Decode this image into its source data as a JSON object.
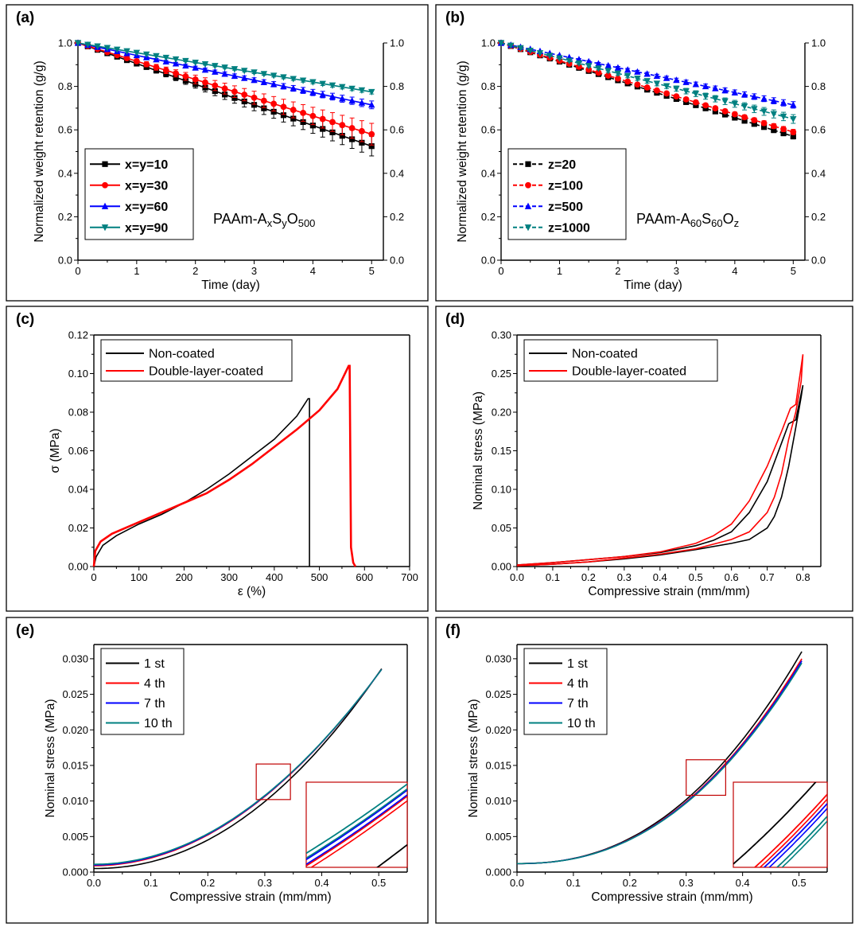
{
  "chart_data": [
    {
      "id": "a",
      "panel_label": "(a)",
      "type": "line",
      "xlabel": "Time (day)",
      "ylabel": "Normalized weight retention (g/g)",
      "xlim": [
        0,
        5.2
      ],
      "ylim": [
        0,
        1.0
      ],
      "xticks": [
        "0",
        "1",
        "2",
        "3",
        "4",
        "5"
      ],
      "yticks": [
        "0.0",
        "0.2",
        "0.4",
        "0.6",
        "0.8",
        "1.0"
      ],
      "right_axis": true,
      "annotation": {
        "prefix": "PAAm-A",
        "s1": "x",
        "mid": "S",
        "s2": "y",
        "mid2": "O",
        "s3": "500"
      },
      "legend_position": "bottom-left",
      "legend_bold": true,
      "error_bars": true,
      "series": [
        {
          "name": "x=y=10",
          "color": "#000000",
          "marker": "square",
          "dashed": false,
          "end": 0.525,
          "err": 0.045
        },
        {
          "name": "x=y=30",
          "color": "#ff0000",
          "marker": "circle",
          "dashed": false,
          "end": 0.58,
          "err": 0.05
        },
        {
          "name": "x=y=60",
          "color": "#0000ff",
          "marker": "triangle-up",
          "dashed": false,
          "end": 0.715,
          "err": 0.018
        },
        {
          "name": "x=y=90",
          "color": "#008080",
          "marker": "triangle-down",
          "dashed": false,
          "end": 0.775,
          "err": 0.01
        }
      ]
    },
    {
      "id": "b",
      "panel_label": "(b)",
      "type": "line",
      "xlabel": "Time (day)",
      "ylabel": "Normalized weight retention (g/g)",
      "xlim": [
        0,
        5.2
      ],
      "ylim": [
        0,
        1.0
      ],
      "xticks": [
        "0",
        "1",
        "2",
        "3",
        "4",
        "5"
      ],
      "yticks": [
        "0.0",
        "0.2",
        "0.4",
        "0.6",
        "0.8",
        "1.0"
      ],
      "right_axis": true,
      "annotation": {
        "prefix": "PAAm-A",
        "s1": "60",
        "mid": "S",
        "s2": "60",
        "mid2": "O",
        "s3": "z"
      },
      "legend_position": "bottom-left",
      "legend_bold": true,
      "error_bars": true,
      "series": [
        {
          "name": "z=20",
          "color": "#000000",
          "marker": "square",
          "dashed": true,
          "end": 0.57,
          "err": 0.012
        },
        {
          "name": "z=100",
          "color": "#ff0000",
          "marker": "circle",
          "dashed": true,
          "end": 0.59,
          "err": 0.012
        },
        {
          "name": "z=500",
          "color": "#0000ff",
          "marker": "triangle-up",
          "dashed": true,
          "end": 0.715,
          "err": 0.015
        },
        {
          "name": "z=1000",
          "color": "#008080",
          "marker": "triangle-down",
          "dashed": true,
          "end": 0.65,
          "err": 0.02
        }
      ]
    },
    {
      "id": "c",
      "panel_label": "(c)",
      "type": "line",
      "xlabel": "ε (%)",
      "ylabel": "σ (MPa)",
      "xlim": [
        0,
        700
      ],
      "ylim": [
        0,
        0.12
      ],
      "xticks": [
        "0",
        "100",
        "200",
        "300",
        "400",
        "500",
        "600",
        "700"
      ],
      "yticks": [
        "0.00",
        "0.02",
        "0.04",
        "0.06",
        "0.08",
        "0.10",
        "0.12"
      ],
      "legend_position": "top-left",
      "series": [
        {
          "name": "Non-coated",
          "color": "#000000",
          "points": [
            [
              0,
              0
            ],
            [
              5,
              0.005
            ],
            [
              20,
              0.011
            ],
            [
              50,
              0.016
            ],
            [
              100,
              0.022
            ],
            [
              150,
              0.027
            ],
            [
              200,
              0.033
            ],
            [
              250,
              0.04
            ],
            [
              300,
              0.048
            ],
            [
              350,
              0.057
            ],
            [
              400,
              0.066
            ],
            [
              450,
              0.078
            ],
            [
              475,
              0.087
            ],
            [
              478,
              0.087
            ],
            [
              478,
              0.0
            ]
          ]
        },
        {
          "name": "Double-layer-coated",
          "color": "#ff0000",
          "points": [
            [
              0,
              0
            ],
            [
              3,
              0.008
            ],
            [
              15,
              0.013
            ],
            [
              40,
              0.017
            ],
            [
              100,
              0.023
            ],
            [
              150,
              0.028
            ],
            [
              200,
              0.033
            ],
            [
              250,
              0.038
            ],
            [
              300,
              0.045
            ],
            [
              350,
              0.053
            ],
            [
              400,
              0.062
            ],
            [
              450,
              0.071
            ],
            [
              500,
              0.081
            ],
            [
              540,
              0.092
            ],
            [
              565,
              0.104
            ],
            [
              567,
              0.104
            ],
            [
              570,
              0.01
            ],
            [
              575,
              0.002
            ],
            [
              580,
              0.0
            ]
          ]
        }
      ]
    },
    {
      "id": "d",
      "panel_label": "(d)",
      "type": "line",
      "xlabel": "Compressive strain (mm/mm)",
      "ylabel": "Nominal stress (MPa)",
      "xlim": [
        0,
        0.85
      ],
      "ylim": [
        0,
        0.3
      ],
      "xticks": [
        "0.0",
        "0.1",
        "0.2",
        "0.3",
        "0.4",
        "0.5",
        "0.6",
        "0.7",
        "0.8"
      ],
      "yticks": [
        "0.00",
        "0.05",
        "0.10",
        "0.15",
        "0.20",
        "0.25",
        "0.30"
      ],
      "legend_position": "top-left",
      "series": [
        {
          "name": "Non-coated",
          "color": "#000000",
          "points": [
            [
              0,
              0.002
            ],
            [
              0.1,
              0.005
            ],
            [
              0.2,
              0.009
            ],
            [
              0.3,
              0.013
            ],
            [
              0.4,
              0.018
            ],
            [
              0.5,
              0.027
            ],
            [
              0.55,
              0.034
            ],
            [
              0.6,
              0.045
            ],
            [
              0.65,
              0.07
            ],
            [
              0.7,
              0.11
            ],
            [
              0.74,
              0.16
            ],
            [
              0.76,
              0.185
            ],
            [
              0.78,
              0.19
            ],
            [
              0.8,
              0.235
            ],
            [
              0.795,
              0.22
            ],
            [
              0.78,
              0.18
            ],
            [
              0.76,
              0.13
            ],
            [
              0.74,
              0.09
            ],
            [
              0.72,
              0.065
            ],
            [
              0.7,
              0.05
            ],
            [
              0.65,
              0.035
            ],
            [
              0.6,
              0.03
            ],
            [
              0.5,
              0.022
            ],
            [
              0.4,
              0.015
            ],
            [
              0.3,
              0.01
            ],
            [
              0.2,
              0.006
            ],
            [
              0.1,
              0.003
            ],
            [
              0,
              0.001
            ]
          ]
        },
        {
          "name": "Double-layer-coated",
          "color": "#ff0000",
          "points": [
            [
              0,
              0.002
            ],
            [
              0.1,
              0.005
            ],
            [
              0.2,
              0.009
            ],
            [
              0.3,
              0.013
            ],
            [
              0.4,
              0.019
            ],
            [
              0.5,
              0.03
            ],
            [
              0.55,
              0.04
            ],
            [
              0.6,
              0.055
            ],
            [
              0.65,
              0.085
            ],
            [
              0.7,
              0.13
            ],
            [
              0.74,
              0.175
            ],
            [
              0.765,
              0.205
            ],
            [
              0.78,
              0.21
            ],
            [
              0.8,
              0.275
            ],
            [
              0.795,
              0.24
            ],
            [
              0.78,
              0.2
            ],
            [
              0.76,
              0.165
            ],
            [
              0.74,
              0.12
            ],
            [
              0.72,
              0.09
            ],
            [
              0.7,
              0.07
            ],
            [
              0.65,
              0.045
            ],
            [
              0.6,
              0.035
            ],
            [
              0.5,
              0.023
            ],
            [
              0.4,
              0.016
            ],
            [
              0.3,
              0.011
            ],
            [
              0.2,
              0.006
            ],
            [
              0.1,
              0.003
            ],
            [
              0,
              0.001
            ]
          ]
        }
      ]
    },
    {
      "id": "e",
      "panel_label": "(e)",
      "type": "line",
      "xlabel": "Compressive strain (mm/mm)",
      "ylabel": "Nominal stress (MPa)",
      "xlim": [
        0,
        0.55
      ],
      "ylim": [
        0,
        0.032
      ],
      "xticks": [
        "0.0",
        "0.1",
        "0.2",
        "0.3",
        "0.4",
        "0.5"
      ],
      "yticks": [
        "0.000",
        "0.005",
        "0.010",
        "0.015",
        "0.020",
        "0.025",
        "0.030"
      ],
      "legend_position": "top-left",
      "inset": true,
      "series": [
        {
          "name": "1 st",
          "color": "#000000",
          "a": 0.0005,
          "b": 0.0281,
          "p": 2.1
        },
        {
          "name": "4 th",
          "color": "#ff0000",
          "a": 0.0009,
          "b": 0.0276,
          "p": 2.0
        },
        {
          "name": "7 th",
          "color": "#0000ff",
          "a": 0.001,
          "b": 0.0275,
          "p": 2.0
        },
        {
          "name": "10 th",
          "color": "#008080",
          "a": 0.0011,
          "b": 0.0274,
          "p": 2.0
        }
      ]
    },
    {
      "id": "f",
      "panel_label": "(f)",
      "type": "line",
      "xlabel": "Compressive strain (mm/mm)",
      "ylabel": "Nominal stress (MPa)",
      "xlim": [
        0,
        0.55
      ],
      "ylim": [
        0,
        0.032
      ],
      "xticks": [
        "0.0",
        "0.1",
        "0.2",
        "0.3",
        "0.4",
        "0.5"
      ],
      "yticks": [
        "0.000",
        "0.005",
        "0.010",
        "0.015",
        "0.020",
        "0.025",
        "0.030"
      ],
      "legend_position": "top-left",
      "inset": true,
      "series": [
        {
          "name": "1 st",
          "color": "#000000",
          "a": 0.0012,
          "b": 0.0298,
          "p": 2.3
        },
        {
          "name": "4 th",
          "color": "#ff0000",
          "a": 0.0012,
          "b": 0.0288,
          "p": 2.3
        },
        {
          "name": "7 th",
          "color": "#0000ff",
          "a": 0.0012,
          "b": 0.0285,
          "p": 2.3
        },
        {
          "name": "10 th",
          "color": "#008080",
          "a": 0.0012,
          "b": 0.0282,
          "p": 2.3
        }
      ]
    }
  ]
}
